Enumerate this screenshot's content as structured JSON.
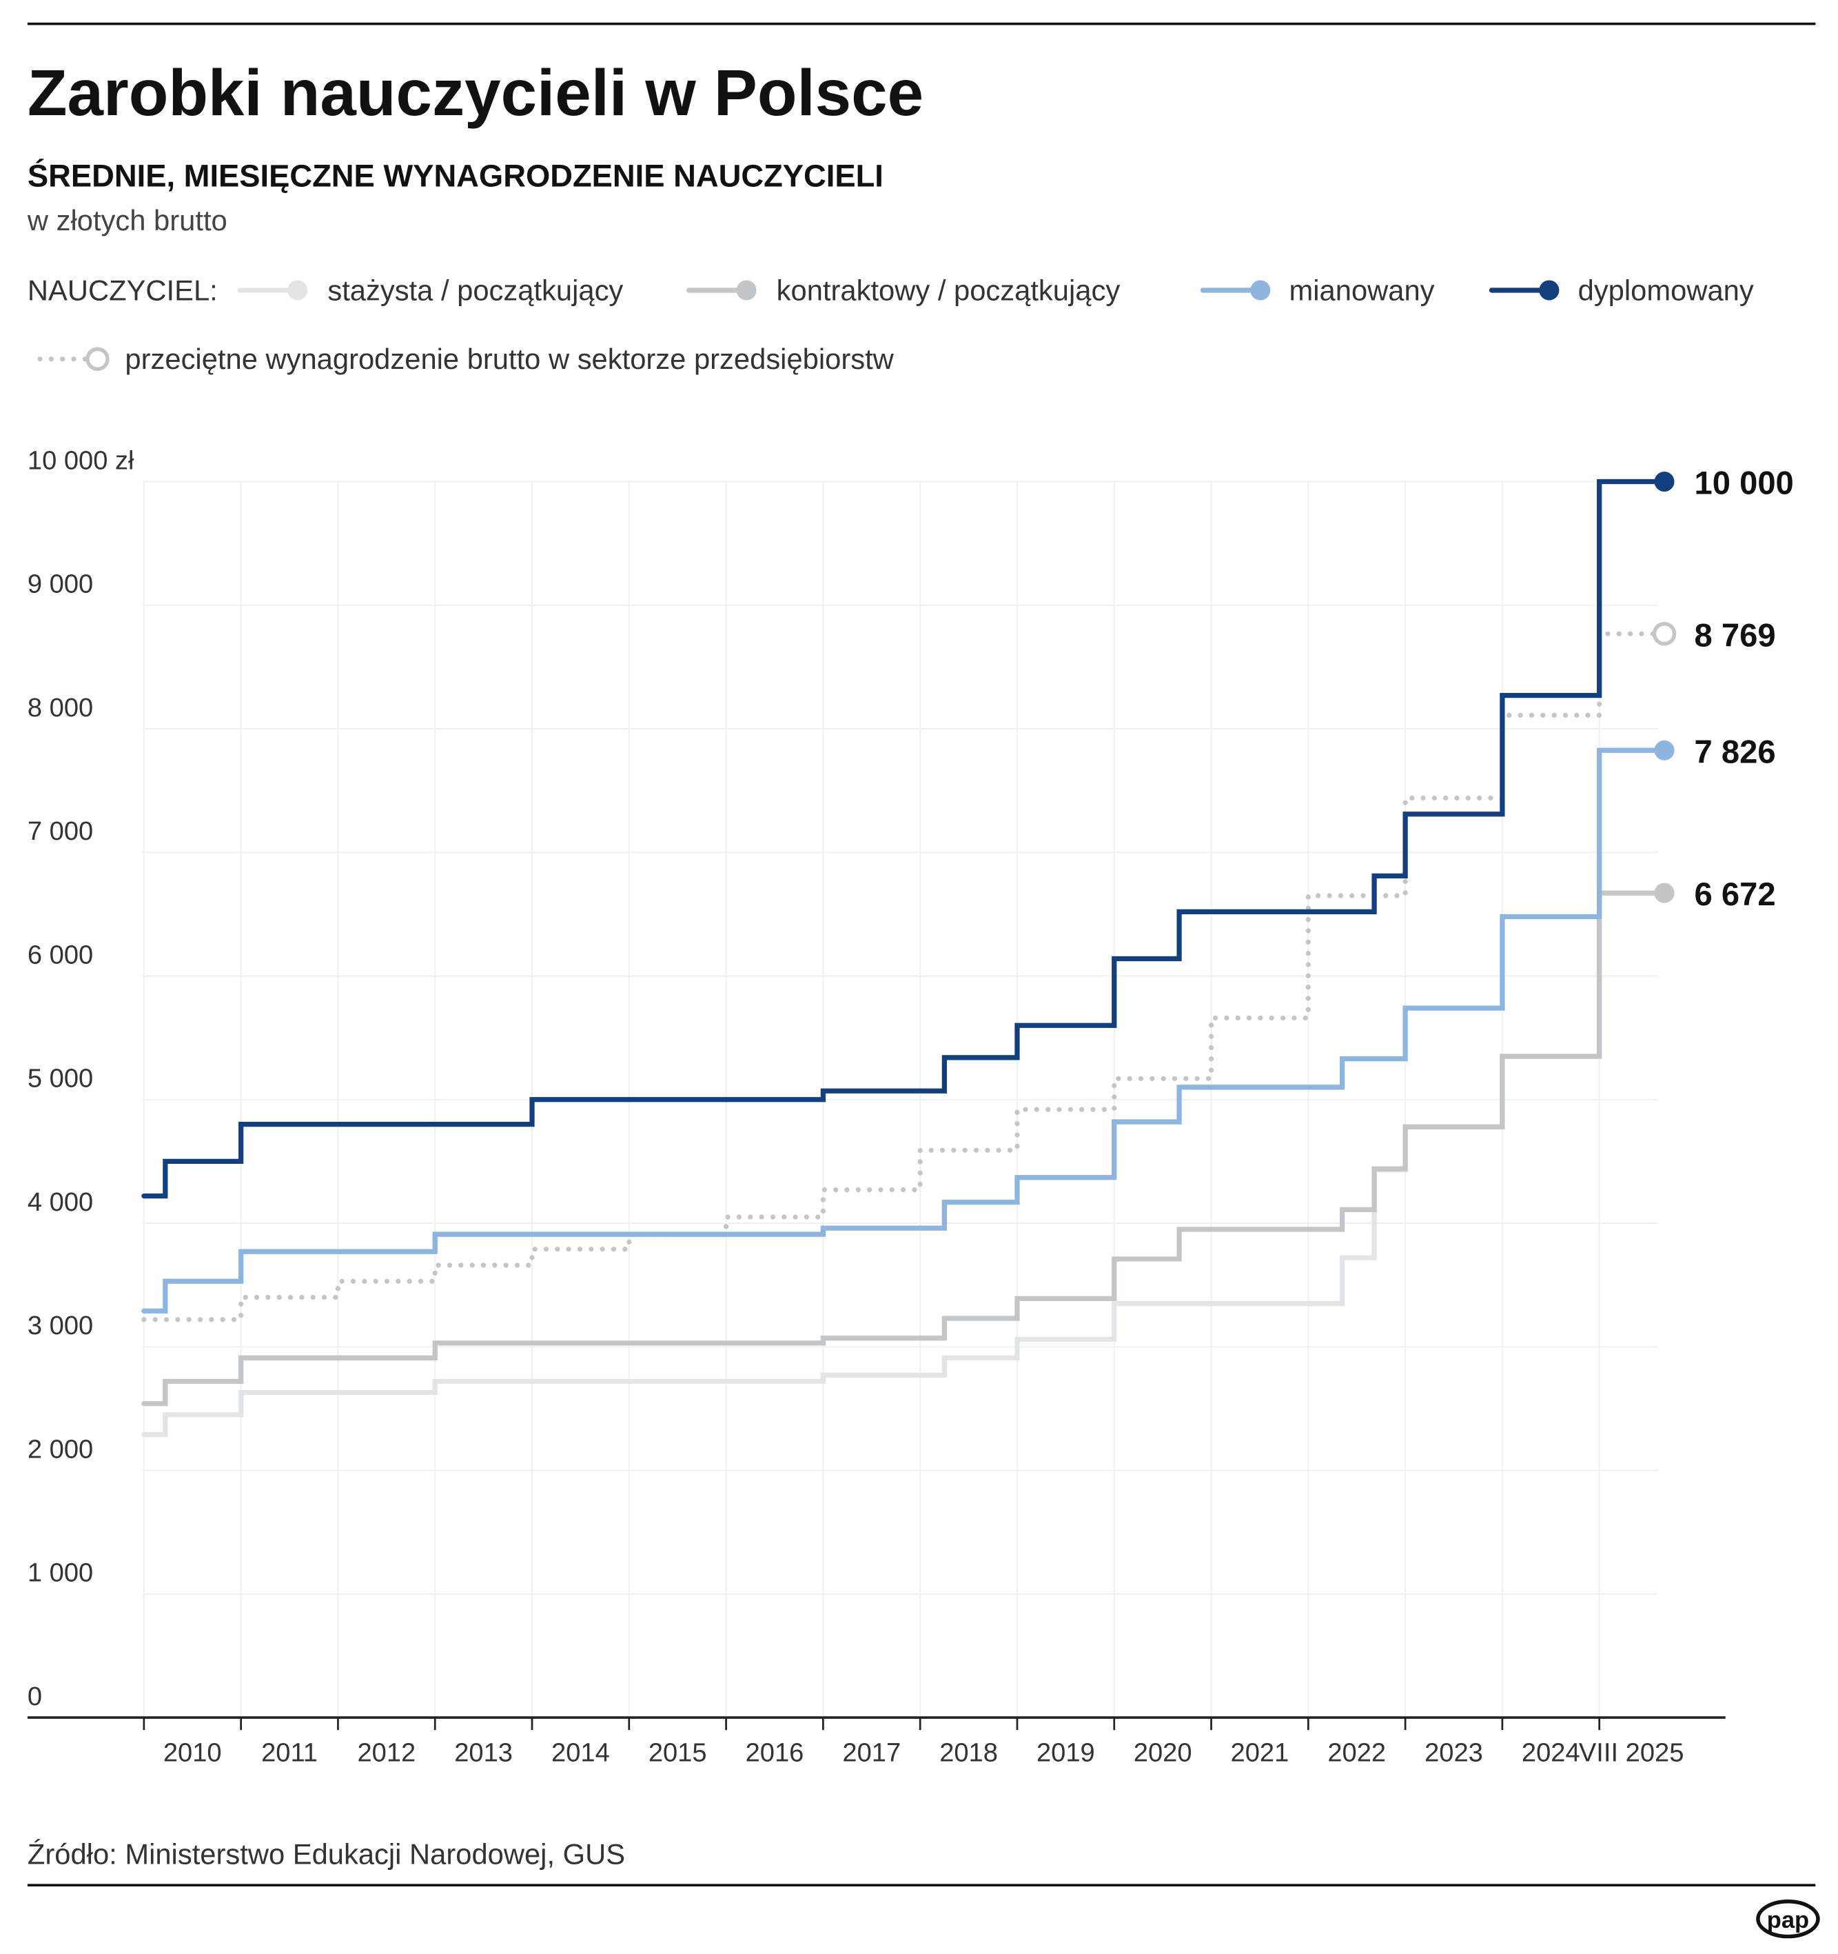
{
  "chart_data": {
    "type": "step-line",
    "title": "Zarobki nauczycieli w Polsce",
    "subtitle": "ŚREDNIE, MIESIĘCZNE WYNAGRODZENIE NAUCZYCIELI",
    "unit_note": "w złotych brutto",
    "legend_title": "NAUCZYCIEL:",
    "source": "Źródło: Ministerstwo Edukacji Narodowej, GUS",
    "logo": "pap",
    "xlim": [
      2008.8,
      2026.3
    ],
    "ylim": [
      0,
      10000
    ],
    "yticks": [
      0,
      {
        "value": 1000,
        "label": "1 000"
      },
      {
        "value": 2000,
        "label": "2 000"
      },
      {
        "value": 3000,
        "label": "3 000"
      },
      {
        "value": 4000,
        "label": "4 000"
      },
      {
        "value": 5000,
        "label": "5 000"
      },
      {
        "value": 6000,
        "label": "6 000"
      },
      {
        "value": 7000,
        "label": "7 000"
      },
      {
        "value": 8000,
        "label": "8 000"
      },
      {
        "value": 9000,
        "label": "9 000"
      },
      {
        "value": 10000,
        "label": "10 000 zł"
      }
    ],
    "xticks": [
      {
        "value": 2010.5,
        "label": "2010"
      },
      {
        "value": 2011.5,
        "label": "2011"
      },
      {
        "value": 2012.5,
        "label": "2012"
      },
      {
        "value": 2013.5,
        "label": "2013"
      },
      {
        "value": 2014.5,
        "label": "2014"
      },
      {
        "value": 2015.5,
        "label": "2015"
      },
      {
        "value": 2016.5,
        "label": "2016"
      },
      {
        "value": 2017.5,
        "label": "2017"
      },
      {
        "value": 2018.5,
        "label": "2018"
      },
      {
        "value": 2019.5,
        "label": "2019"
      },
      {
        "value": 2020.5,
        "label": "2020"
      },
      {
        "value": 2021.5,
        "label": "2021"
      },
      {
        "value": 2022.5,
        "label": "2022"
      },
      {
        "value": 2023.5,
        "label": "2023"
      },
      {
        "value": 2024.5,
        "label": "2024"
      },
      {
        "value": 2025.33,
        "label": "VIII 2025"
      }
    ],
    "x_boundaries": [
      2010,
      2011,
      2012,
      2013,
      2014,
      2015,
      2016,
      2017,
      2018,
      2019,
      2020,
      2021,
      2022,
      2023,
      2024,
      2025
    ],
    "grid": true,
    "series": [
      {
        "name": "stażysta / początkujący",
        "color": "#e2e5e8",
        "dotted": false,
        "x": [
          2010,
          2010.22,
          2011,
          2013,
          2017,
          2018.25,
          2019,
          2020,
          2022.35,
          2022.68,
          2023,
          2024,
          2025,
          2025.67
        ],
        "values": [
          2290,
          2450,
          2630,
          2720,
          2770,
          2910,
          3060,
          3350,
          3720,
          4430,
          4780,
          5350,
          6672,
          6672
        ]
      },
      {
        "name": "kontraktowy / początkujący",
        "color": "#c3c6c9",
        "dotted": false,
        "x": [
          2010,
          2010.22,
          2011,
          2013,
          2017,
          2018.25,
          2019,
          2020,
          2020.67,
          2022.35,
          2022.68,
          2023,
          2024,
          2025,
          2025.67
        ],
        "values": [
          2540,
          2720,
          2910,
          3030,
          3070,
          3230,
          3390,
          3710,
          3950,
          4110,
          4440,
          4780,
          5350,
          6672,
          6672
        ],
        "value_labels": [
          null,
          null,
          null,
          null,
          null,
          null,
          null,
          null,
          null,
          null,
          null,
          null,
          null,
          null,
          "6 672"
        ]
      },
      {
        "name": "przeciętne wynagrodzenie brutto w sektorze przedsiębiorstw",
        "color": "#c3c6c9",
        "dotted": true,
        "x": [
          2010,
          2011,
          2012,
          2013,
          2014,
          2015,
          2016,
          2017,
          2018,
          2019,
          2020,
          2021,
          2022,
          2023,
          2024,
          2025,
          2025.67
        ],
        "values": [
          3220,
          3400,
          3530,
          3660,
          3790,
          3910,
          4050,
          4270,
          4590,
          4920,
          5170,
          5660,
          6650,
          7440,
          8110,
          8769,
          8769
        ],
        "value_labels": [
          null,
          null,
          null,
          null,
          null,
          null,
          null,
          null,
          null,
          null,
          null,
          null,
          null,
          null,
          null,
          null,
          "8 769"
        ]
      },
      {
        "name": "mianowany",
        "color": "#8eb4e0",
        "dotted": false,
        "x": [
          2010,
          2010.22,
          2011,
          2013,
          2017,
          2018.25,
          2019,
          2020,
          2020.67,
          2022.35,
          2023,
          2024,
          2025,
          2025.67
        ],
        "values": [
          3290,
          3530,
          3770,
          3910,
          3960,
          4170,
          4370,
          4820,
          5100,
          5330,
          5740,
          6480,
          7826,
          7826
        ],
        "value_labels": [
          null,
          null,
          null,
          null,
          null,
          null,
          null,
          null,
          null,
          null,
          null,
          null,
          null,
          "7 826"
        ]
      },
      {
        "name": "dyplomowany",
        "color": "#143f7f",
        "dotted": false,
        "x": [
          2010,
          2010.22,
          2011,
          2014,
          2017,
          2018.25,
          2019,
          2020,
          2020.67,
          2022.68,
          2023,
          2024,
          2025,
          2025.67
        ],
        "values": [
          4220,
          4500,
          4800,
          5000,
          5070,
          5340,
          5600,
          6140,
          6520,
          6810,
          7310,
          8270,
          10000,
          10000
        ],
        "value_labels": [
          null,
          null,
          null,
          null,
          null,
          null,
          null,
          null,
          null,
          null,
          null,
          null,
          null,
          "10 000"
        ]
      }
    ]
  }
}
